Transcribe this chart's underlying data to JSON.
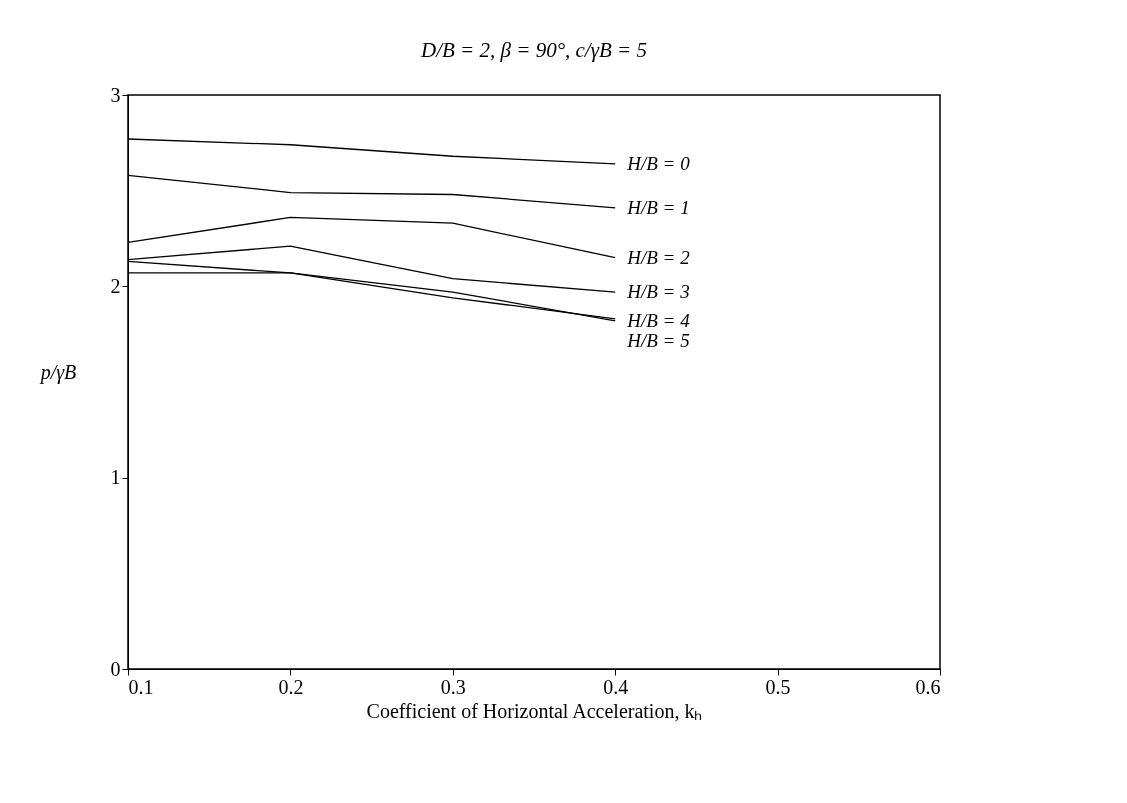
{
  "chart_data": {
    "type": "line",
    "title": "D/B = 2, β = 90°, c/γB = 5",
    "xlabel": "Coefficient of Horizontal Acceleration, kₕ",
    "ylabel": "p/γB",
    "x": [
      0.1,
      0.2,
      0.3,
      0.4
    ],
    "series": [
      {
        "name": "H/B = 0",
        "color": "#000000",
        "values": [
          2.77,
          2.74,
          2.68,
          2.64
        ]
      },
      {
        "name": "H/B = 1",
        "color": "#000000",
        "values": [
          2.58,
          2.49,
          2.48,
          2.41
        ]
      },
      {
        "name": "H/B = 2",
        "color": "#000000",
        "values": [
          2.23,
          2.36,
          2.33,
          2.15
        ]
      },
      {
        "name": "H/B = 3",
        "color": "#000000",
        "values": [
          2.14,
          2.21,
          2.04,
          1.97
        ]
      },
      {
        "name": "H/B = 4",
        "color": "#000000",
        "values": [
          2.13,
          2.07,
          1.97,
          1.82
        ]
      },
      {
        "name": "H/B = 5",
        "color": "#000000",
        "values": [
          2.07,
          2.07,
          1.94,
          1.83
        ]
      }
    ],
    "xlim": [
      0.1,
      0.6
    ],
    "xticks": [
      0.1,
      0.2,
      0.3,
      0.4,
      0.5,
      0.6
    ],
    "ylim": [
      0,
      3
    ],
    "yticks": [
      0,
      1,
      2,
      3
    ],
    "grid": false,
    "legend": false,
    "marker": "none",
    "line_style": "solid"
  }
}
